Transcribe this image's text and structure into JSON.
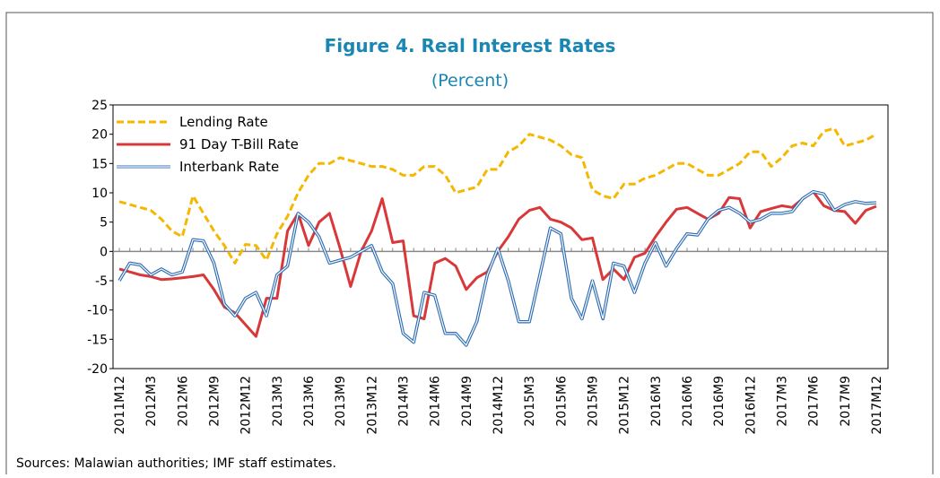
{
  "chart_data": {
    "type": "line",
    "title": "Figure 4. Real Interest Rates",
    "subtitle": "(Percent)",
    "source": "Sources: Malawian authorities; IMF staff estimates.",
    "categories": [
      "2011M12",
      null,
      null,
      "2012M3",
      null,
      null,
      "2012M6",
      null,
      null,
      "2012M9",
      null,
      null,
      "2012M12",
      null,
      null,
      "2013M3",
      null,
      null,
      "2013M6",
      null,
      null,
      "2013M9",
      null,
      null,
      "2013M12",
      null,
      null,
      "2014M3",
      null,
      null,
      "2014M6",
      null,
      null,
      "2014M9",
      null,
      null,
      "2014M12",
      null,
      null,
      "2015M3",
      null,
      null,
      "2015M6",
      null,
      null,
      "2015M9",
      null,
      null,
      "2015M12",
      null,
      null,
      "2016M3",
      null,
      null,
      "2016M6",
      null,
      null,
      "2016M9",
      null,
      null,
      "2016M12",
      null,
      null,
      "2017M3",
      null,
      null,
      "2017M6",
      null,
      null,
      "2017M9",
      null,
      null,
      "2017M12"
    ],
    "series": [
      {
        "name": "Lending Rate",
        "color": "#f5b800",
        "style": "dashed",
        "values": [
          8.5,
          8,
          7.5,
          7,
          5.5,
          3.5,
          2.5,
          9.5,
          6.5,
          3.5,
          1,
          -2,
          1.2,
          1,
          -1.5,
          3,
          6,
          10,
          13,
          15,
          15,
          16,
          15.5,
          15,
          14.5,
          14.5,
          14,
          13,
          13,
          14.5,
          14.5,
          13,
          10,
          10.5,
          11,
          14,
          14,
          17,
          18,
          20,
          19.5,
          19,
          18,
          16.5,
          16,
          10.5,
          9.5,
          9,
          11.5,
          11.5,
          12.5,
          13,
          14,
          15,
          15,
          14,
          13,
          13,
          14,
          15,
          17,
          17,
          14.5,
          16,
          18,
          18.5,
          18,
          20.5,
          21,
          18,
          18.5,
          19,
          20
        ]
      },
      {
        "name": "91 Day T-Bill Rate",
        "color": "#d9383a",
        "style": "solid",
        "values": [
          -3,
          -3.5,
          -4,
          -4.3,
          -4.8,
          -4.7,
          -4.5,
          -4.3,
          -4,
          -6.5,
          -9.5,
          -10.5,
          -12.5,
          -14.5,
          -8,
          -8,
          3.5,
          6.5,
          1,
          5,
          6.5,
          0.5,
          -6,
          0,
          3.5,
          9,
          1.5,
          1.8,
          -11,
          -11.5,
          -2,
          -1.2,
          -2.5,
          -6.5,
          -4.5,
          -3.5,
          0,
          2.5,
          5.5,
          7,
          7.5,
          5.5,
          5,
          4,
          2,
          2.3,
          -4.8,
          -3,
          -4.8,
          -1,
          -0.3,
          2.5,
          5,
          7.2,
          7.5,
          6.5,
          5.5,
          6.5,
          9.2,
          9,
          4,
          6.8,
          7.3,
          7.8,
          7.5,
          9,
          10.2,
          7.8,
          7,
          6.8,
          4.8,
          7,
          7.7
        ]
      },
      {
        "name": "Interbank Rate",
        "color": "#2f6db5",
        "style": "double",
        "values": [
          -5,
          -2,
          -2.3,
          -4,
          -3,
          -4,
          -3.5,
          2,
          1.8,
          -2,
          -9,
          -11,
          -8,
          -7,
          -11,
          -4,
          -2.5,
          6.5,
          5,
          2.5,
          -2,
          -1.5,
          -1,
          0,
          1,
          -3.5,
          -5.5,
          -14,
          -15.5,
          -7,
          -7.5,
          -14,
          -14,
          -16,
          -12,
          -4,
          0.5,
          -5,
          -12,
          -12,
          -4,
          4,
          3,
          -8,
          -11.5,
          -5,
          -11.5,
          -2,
          -2.5,
          -7,
          -2,
          1.5,
          -2.5,
          0.5,
          3,
          2.8,
          5.5,
          7,
          7.5,
          6.5,
          5,
          5.5,
          6.5,
          6.5,
          6.8,
          9,
          10.2,
          9.8,
          7,
          8,
          8.5,
          8.2,
          8.3
        ]
      }
    ],
    "ylim": [
      -20,
      25
    ],
    "yticks": [
      -20,
      -15,
      -10,
      -5,
      0,
      5,
      10,
      15,
      20,
      25
    ],
    "legend": "upper-left"
  }
}
